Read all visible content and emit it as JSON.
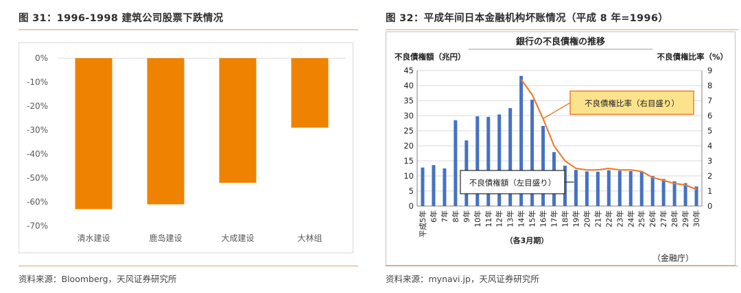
{
  "left": {
    "figure_title": "图 31：1996-1998 建筑公司股票下跌情况",
    "source": "资料来源：Bloomberg，天风证券研究所",
    "colors": {
      "bar": "#ef8200",
      "rule": "#d4a56e"
    }
  },
  "right": {
    "figure_title": "图 32：平成年间日本金融机构坏账情况（平成 8 年=1996）",
    "source": "资料来源：mynavi.jp，天风证券研究所",
    "colors": {
      "bar": "#4472c4",
      "line": "#ed7d31",
      "callout_fill": "#fbe38d",
      "callout_border": "#ed7d31"
    }
  },
  "chart_data": [
    {
      "type": "bar",
      "categories": [
        "清水建设",
        "鹿岛建设",
        "大成建设",
        "大林组"
      ],
      "values": [
        -63,
        -61,
        -52,
        -29
      ],
      "ylim": [
        -70,
        0
      ],
      "yticks": [
        0,
        -10,
        -20,
        -30,
        -40,
        -50,
        -60,
        -70
      ],
      "ytick_labels": [
        "0%",
        "-10%",
        "-20%",
        "-30%",
        "-40%",
        "-50%",
        "-60%",
        "-70%"
      ],
      "grid": false,
      "xlabel": "",
      "ylabel": ""
    },
    {
      "type": "bar+line",
      "title": "銀行の不良債権の推移",
      "ylabel_left": "不良債権額（兆円）",
      "ylabel_right": "不良債権比率（%）",
      "xlabel": "（各3月期）",
      "note": "（金融庁）",
      "categories": [
        "平成5年",
        "6年",
        "7年",
        "8年",
        "9年",
        "10年",
        "11年",
        "12年",
        "13年",
        "14年",
        "15年",
        "16年",
        "17年",
        "18年",
        "19年",
        "20年",
        "21年",
        "22年",
        "23年",
        "24年",
        "25年",
        "26年",
        "27年",
        "28年",
        "29年",
        "30年"
      ],
      "ylim_left": [
        0,
        45
      ],
      "yticks_left": [
        0,
        5,
        10,
        15,
        20,
        25,
        30,
        35,
        40,
        45
      ],
      "ylim_right": [
        0,
        9
      ],
      "yticks_right": [
        0,
        1,
        2,
        3,
        4,
        5,
        6,
        7,
        8,
        9
      ],
      "grid": true,
      "series": [
        {
          "name": "不良債権額（左目盛り）",
          "type": "bar",
          "axis": "left",
          "values": [
            12.8,
            13.6,
            12.5,
            28.5,
            21.8,
            29.8,
            29.6,
            30.4,
            32.5,
            43.2,
            35.3,
            26.6,
            17.9,
            13.4,
            12.0,
            11.5,
            11.4,
            11.9,
            11.7,
            11.6,
            11.3,
            10.0,
            9.0,
            8.2,
            7.6,
            6.5
          ]
        },
        {
          "name": "不良債権比率（右目盛り）",
          "type": "line",
          "axis": "right",
          "x": [
            "14年",
            "15年",
            "16年",
            "17年",
            "18年",
            "19年",
            "20年",
            "21年",
            "22年",
            "23年",
            "24年",
            "25年",
            "26年",
            "27年",
            "28年",
            "29年",
            "30年"
          ],
          "values": [
            8.4,
            7.4,
            5.8,
            4.0,
            3.0,
            2.5,
            2.4,
            2.4,
            2.5,
            2.4,
            2.4,
            2.3,
            1.9,
            1.7,
            1.5,
            1.4,
            1.1
          ]
        }
      ],
      "annotations": [
        "不良債権比率（右目盛り）",
        "不良債権額（左目盛り）"
      ]
    }
  ]
}
